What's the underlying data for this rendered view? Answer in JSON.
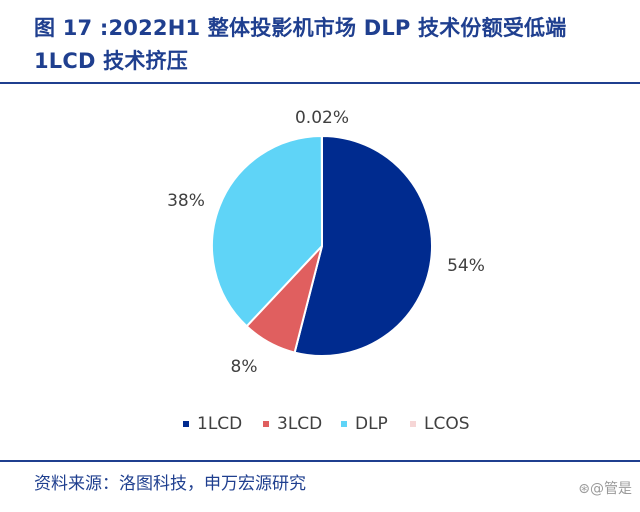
{
  "header": {
    "title": "图 17 :2022H1 整体投影机市场 DLP 技术份额受低端 1LCD 技术挤压"
  },
  "footer": {
    "source": "资料来源：洛图科技，申万宏源研究",
    "watermark": "⊛@管是"
  },
  "colors": {
    "accent": "#1f3f8f"
  },
  "chart_data": {
    "type": "pie",
    "title": "",
    "legend_position": "bottom",
    "slices": [
      {
        "name": "1LCD",
        "value": 54.0,
        "label": "54%",
        "color": "#002b8f"
      },
      {
        "name": "3LCD",
        "value": 8.0,
        "label": "8%",
        "color": "#e05f5f"
      },
      {
        "name": "DLP",
        "value": 37.98,
        "label": "38%",
        "color": "#5fd4f7"
      },
      {
        "name": "LCOS",
        "value": 0.02,
        "label": "0.02%",
        "color": "#f6d6d6"
      }
    ]
  }
}
